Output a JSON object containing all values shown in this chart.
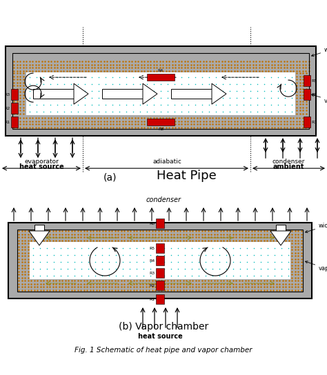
{
  "bg_color": "#ffffff",
  "gray_color": "#aaaaaa",
  "orange_color": "#f5a000",
  "orange_dot_color": "#c07000",
  "red_color": "#cc0000",
  "cyan_color": "#00bbbb",
  "title_a_left": "(a)",
  "title_a_right": "Heat Pipe",
  "title_b": "(b) Vapor chamber",
  "caption": "Fig. 1 Schematic of heat pipe and vapor chamber",
  "label_evap": "evaporator",
  "label_adiab": "adiabatic",
  "label_cond_a": "condenser",
  "label_hs_a": "heat source",
  "label_amb": "ambient",
  "label_wick": "wick",
  "label_vapor": "vapor",
  "label_cond_b": "condenser",
  "label_hs_b": "heat source"
}
